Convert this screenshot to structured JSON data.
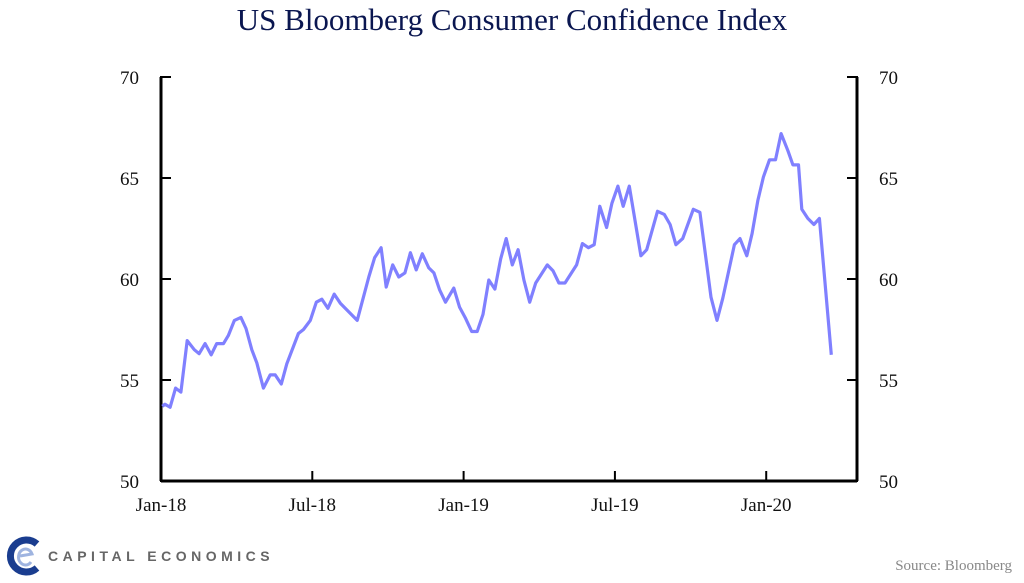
{
  "logo_text": "CAPITAL ECONOMICS",
  "source": "Source: Bloomberg",
  "chart_data": {
    "type": "line",
    "title": "US Bloomberg Consumer Confidence Index",
    "xlabel": "",
    "ylabel": "",
    "x_units": "months since Jan-18",
    "xlim": [
      0,
      27.6
    ],
    "ylim": [
      50,
      70
    ],
    "x_ticks": [
      {
        "value": 0,
        "label": "Jan-18"
      },
      {
        "value": 6,
        "label": "Jul-18"
      },
      {
        "value": 12,
        "label": "Jan-19"
      },
      {
        "value": 18,
        "label": "Jul-19"
      },
      {
        "value": 24,
        "label": "Jan-20"
      }
    ],
    "y_ticks": [
      {
        "value": 50,
        "label": "50"
      },
      {
        "value": 55,
        "label": "55"
      },
      {
        "value": 60,
        "label": "60"
      },
      {
        "value": 65,
        "label": "65"
      },
      {
        "value": 70,
        "label": "70"
      }
    ],
    "grid": false,
    "legend": "none",
    "colors": {
      "line": "#8080ff",
      "axis": "#000000",
      "title": "#0a1650"
    },
    "series": [
      {
        "name": "US Bloomberg Consumer Confidence Index",
        "x": [
          0.05,
          0.16,
          0.36,
          0.58,
          0.79,
          1.04,
          1.32,
          1.51,
          1.75,
          1.99,
          2.21,
          2.48,
          2.67,
          2.91,
          3.17,
          3.37,
          3.6,
          3.8,
          4.06,
          4.33,
          4.53,
          4.77,
          4.99,
          5.45,
          5.65,
          5.92,
          6.16,
          6.38,
          6.62,
          6.87,
          7.11,
          7.78,
          8.24,
          8.47,
          8.73,
          8.93,
          9.19,
          9.43,
          9.67,
          9.89,
          10.12,
          10.36,
          10.62,
          10.82,
          11.05,
          11.28,
          11.61,
          11.84,
          12.08,
          12.32,
          12.54,
          12.77,
          13.0,
          13.24,
          13.47,
          13.69,
          13.93,
          14.16,
          14.39,
          14.62,
          14.86,
          15.32,
          15.55,
          15.78,
          16.02,
          16.48,
          16.71,
          16.95,
          17.18,
          17.4,
          17.67,
          17.88,
          18.12,
          18.33,
          18.57,
          19.03,
          19.26,
          19.69,
          19.96,
          20.19,
          20.42,
          20.69,
          21.11,
          21.37,
          21.81,
          22.05,
          22.28,
          22.74,
          22.96,
          23.23,
          23.44,
          23.67,
          23.89,
          24.13,
          24.37,
          24.59,
          24.86,
          25.06,
          25.28,
          25.41,
          25.65,
          25.89,
          26.11,
          26.58
        ],
        "y": [
          53.7,
          53.8,
          53.65,
          54.6,
          54.4,
          56.95,
          56.5,
          56.3,
          56.8,
          56.25,
          56.8,
          56.8,
          57.2,
          57.95,
          58.1,
          57.55,
          56.5,
          55.85,
          54.6,
          55.25,
          55.25,
          54.8,
          55.8,
          57.3,
          57.5,
          57.95,
          58.85,
          59.0,
          58.55,
          59.25,
          58.8,
          57.95,
          60.1,
          61.05,
          61.55,
          59.6,
          60.7,
          60.1,
          60.3,
          61.3,
          60.45,
          61.25,
          60.55,
          60.3,
          59.45,
          58.85,
          59.55,
          58.6,
          58.05,
          57.4,
          57.4,
          58.25,
          59.95,
          59.5,
          61.0,
          62.0,
          60.7,
          61.45,
          59.95,
          58.85,
          59.8,
          60.7,
          60.4,
          59.8,
          59.8,
          60.7,
          61.75,
          61.55,
          61.7,
          63.6,
          62.55,
          63.75,
          64.6,
          63.6,
          64.6,
          61.15,
          61.45,
          63.35,
          63.2,
          62.7,
          61.7,
          62.0,
          63.45,
          63.3,
          59.1,
          57.95,
          59.05,
          61.7,
          62.0,
          61.15,
          62.25,
          63.9,
          65.05,
          65.9,
          65.9,
          67.2,
          66.35,
          65.65,
          65.65,
          63.45,
          63.0,
          62.7,
          63.0,
          56.25
        ]
      }
    ]
  }
}
